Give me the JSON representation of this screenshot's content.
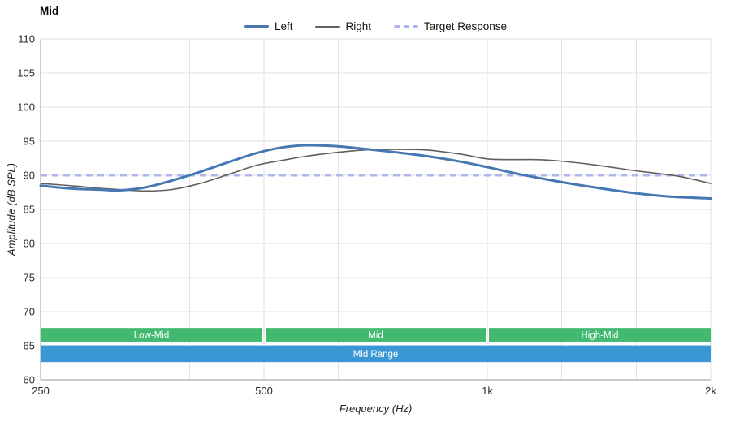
{
  "legend": {
    "items": [
      {
        "label": "Left",
        "color": "#4577b3",
        "thickness": 3,
        "dashed": false
      },
      {
        "label": "Right",
        "color": "#606060",
        "thickness": 2,
        "dashed": false
      },
      {
        "label": "Target Response",
        "color": "#aeb6f0",
        "thickness": 3,
        "dashed": true
      }
    ]
  },
  "chart_data": {
    "type": "line",
    "title": "Mid",
    "xlabel": "Frequency (Hz)",
    "ylabel": "Amplitude (dB SPL)",
    "x_scale": "log",
    "xlim": [
      250,
      2000
    ],
    "ylim": [
      60,
      110
    ],
    "grid": true,
    "grid_color": "#e2e2e2",
    "axis_color": "#999999",
    "tick_label_color": "#2b2b2b",
    "gridlines_per_octave": 3,
    "x_ticks": [
      {
        "f": 250,
        "label": "250"
      },
      {
        "f": 500,
        "label": "500"
      },
      {
        "f": 1000,
        "label": "1k"
      },
      {
        "f": 2000,
        "label": "2k"
      }
    ],
    "y_ticks": [
      60,
      65,
      70,
      75,
      80,
      85,
      90,
      95,
      100,
      105,
      110
    ],
    "target_response": {
      "label": "Target Response",
      "db": 90,
      "color": "#aeb6f0",
      "dash": [
        8,
        6
      ],
      "thickness": 3
    },
    "series": [
      {
        "name": "Left",
        "color": "#4577b3",
        "thickness": 3,
        "x": [
          250,
          265,
          280,
          300,
          320,
          345,
          375,
          410,
          450,
          490,
          530,
          570,
          620,
          680,
          750,
          830,
          920,
          1000,
          1100,
          1230,
          1380,
          1550,
          1750,
          2000
        ],
        "y": [
          88.5,
          88.2,
          88.0,
          87.9,
          87.8,
          88.2,
          89.2,
          90.5,
          92.0,
          93.3,
          94.1,
          94.4,
          94.3,
          93.9,
          93.4,
          92.8,
          92.0,
          91.2,
          90.2,
          89.2,
          88.3,
          87.5,
          86.9,
          86.6
        ]
      },
      {
        "name": "Right",
        "color": "#606060",
        "thickness": 1.6,
        "x": [
          250,
          265,
          280,
          300,
          320,
          345,
          375,
          410,
          450,
          490,
          530,
          570,
          620,
          680,
          750,
          830,
          920,
          1000,
          1080,
          1160,
          1250,
          1400,
          1600,
          1800,
          2000
        ],
        "y": [
          88.8,
          88.6,
          88.4,
          88.1,
          87.9,
          87.7,
          87.9,
          88.8,
          90.2,
          91.5,
          92.2,
          92.8,
          93.3,
          93.7,
          93.8,
          93.7,
          93.1,
          92.4,
          92.3,
          92.3,
          92.1,
          91.5,
          90.6,
          89.9,
          88.8
        ]
      }
    ],
    "bands": {
      "color": "#41b96f",
      "db_top": 67.6,
      "db_bottom": 65.6,
      "segments": [
        {
          "label": "Low-Mid",
          "from": 250,
          "to": 500
        },
        {
          "label": "Mid",
          "from": 500,
          "to": 1000
        },
        {
          "label": "High-Mid",
          "from": 1000,
          "to": 2000
        }
      ],
      "range": {
        "label": "Mid Range",
        "from": 250,
        "to": 2000,
        "color": "#3a97d5",
        "db_top": 65.05,
        "db_bottom": 62.6
      }
    }
  }
}
